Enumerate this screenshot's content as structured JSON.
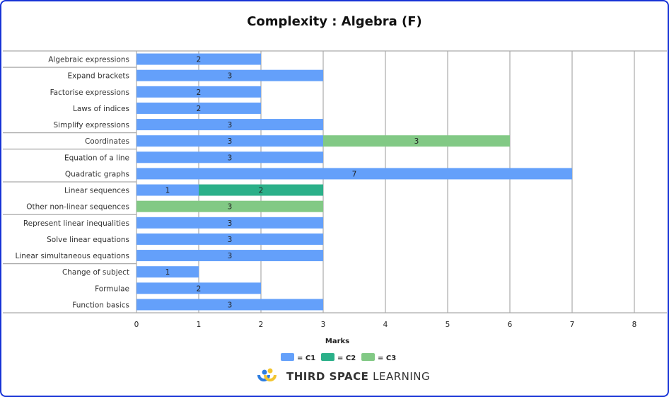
{
  "chart_data": {
    "type": "bar",
    "orientation": "horizontal",
    "stacked": true,
    "title": "Complexity : Algebra (F)",
    "xlabel": "Marks",
    "ylabel": "",
    "xlim": [
      0,
      8
    ],
    "xticks": [
      "0",
      "1",
      "2",
      "3",
      "4",
      "5",
      "6",
      "7",
      "8"
    ],
    "grid": true,
    "legend_position": "bottom",
    "categories": [
      "Algebraic expressions",
      "Expand brackets",
      "Factorise expressions",
      "Laws of indices",
      "Simplify expressions",
      "Coordinates",
      "Equation of a line",
      "Quadratic graphs",
      "Linear sequences",
      "Other non-linear sequences",
      "Represent linear inequalities",
      "Solve linear equations",
      "Linear simultaneous equations",
      "Change of subject",
      "Formulae",
      "Function basics"
    ],
    "group_breaks_after": [
      "Algebraic expressions",
      "Simplify expressions",
      "Coordinates",
      "Quadratic graphs",
      "Other non-linear sequences",
      "Linear simultaneous equations"
    ],
    "series": [
      {
        "name": "= C1",
        "color": "#64a0fa",
        "values": [
          2,
          3,
          2,
          2,
          3,
          3,
          3,
          7,
          1,
          0,
          3,
          3,
          3,
          1,
          2,
          3
        ]
      },
      {
        "name": "= C2",
        "color": "#2bb089",
        "values": [
          0,
          0,
          0,
          0,
          0,
          0,
          0,
          0,
          2,
          0,
          0,
          0,
          0,
          0,
          0,
          0
        ]
      },
      {
        "name": "= C3",
        "color": "#82c985",
        "values": [
          0,
          0,
          0,
          0,
          0,
          3,
          0,
          0,
          0,
          3,
          0,
          0,
          0,
          0,
          0,
          0
        ]
      }
    ]
  },
  "branding": {
    "logo_text_bold": "THIRD SPACE",
    "logo_text_light": "LEARNING"
  }
}
